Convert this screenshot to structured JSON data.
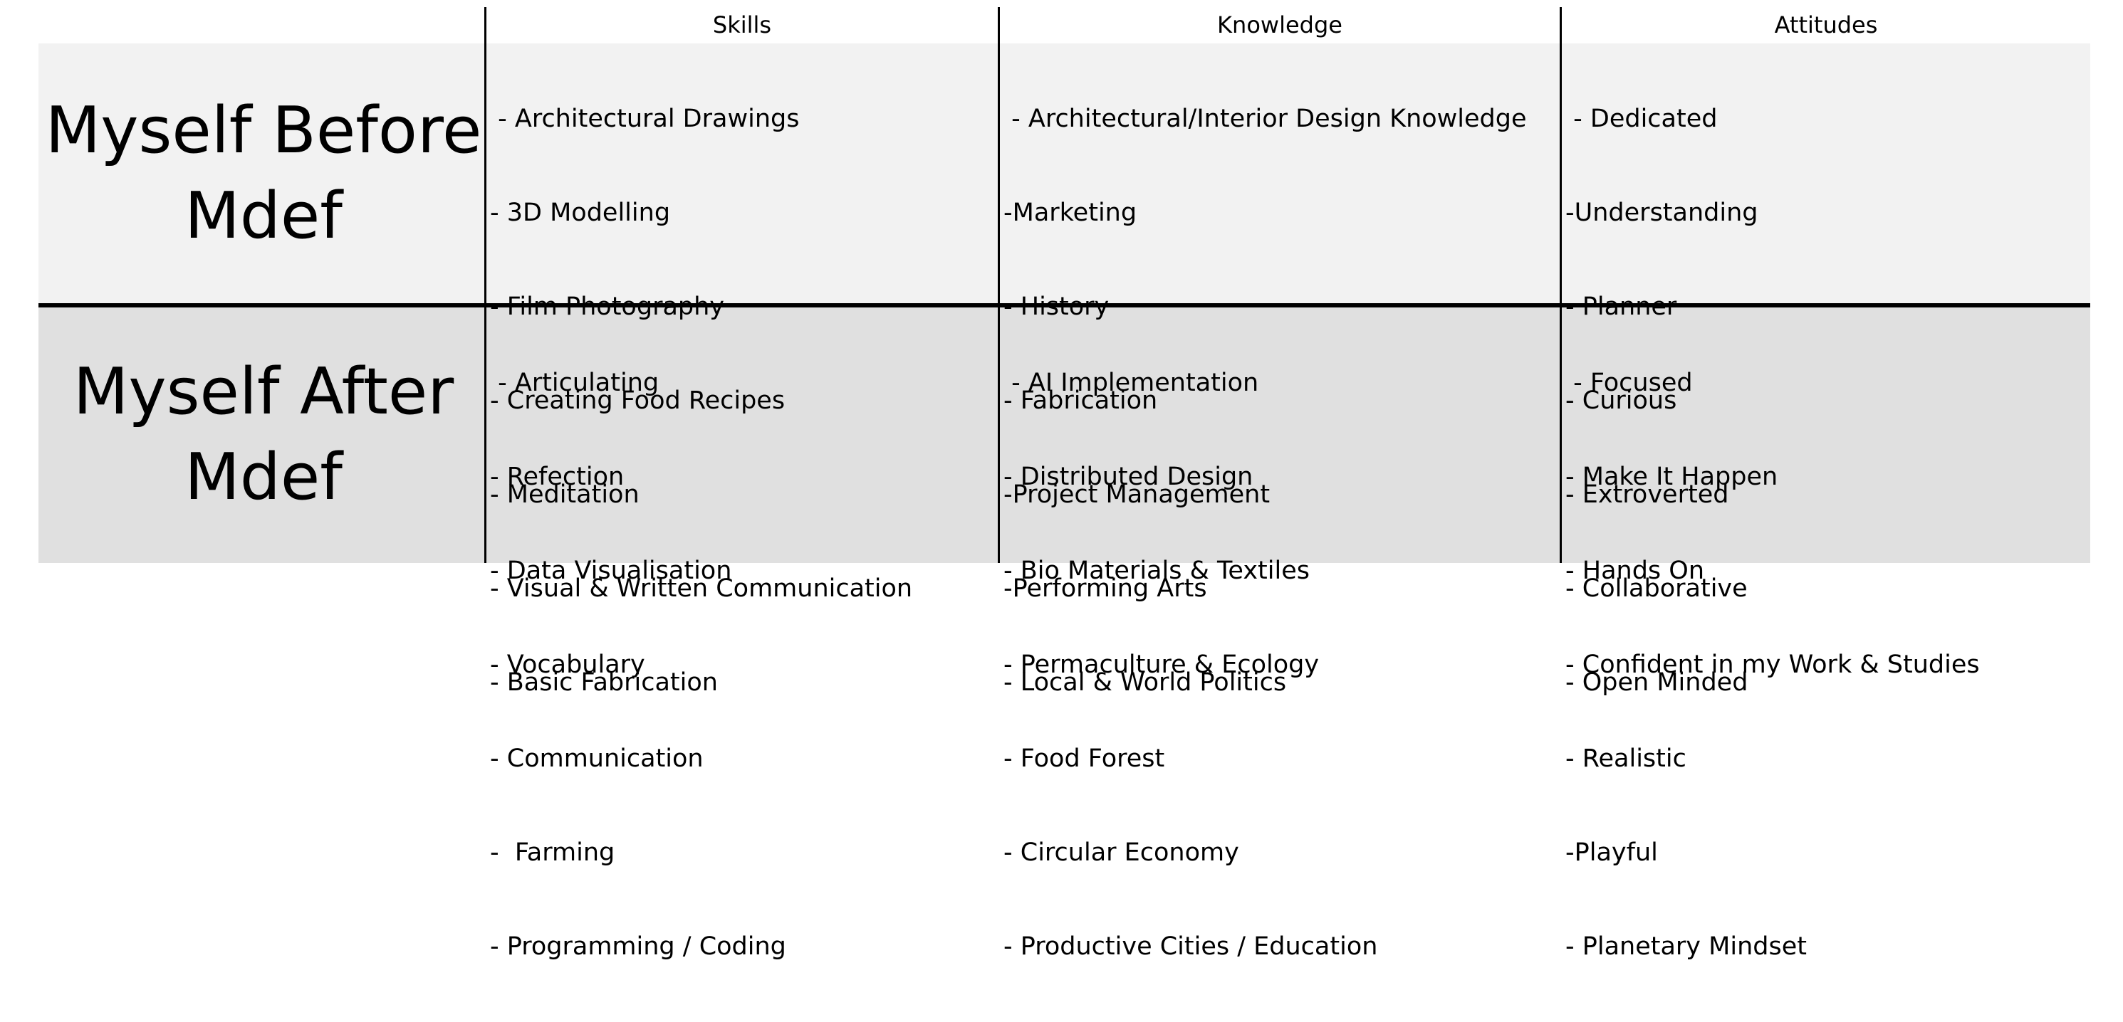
{
  "columns": {
    "skills": "Skills",
    "knowledge": "Knowledge",
    "attitudes": "Attitudes"
  },
  "rows": {
    "before": {
      "title_line1": "Myself Before",
      "title_line2": "Mdef",
      "skills": [
        " - Architectural Drawings",
        "- 3D Modelling",
        "- Film Photography",
        "- Creating Food Recipes",
        "- Meditation",
        "- Visual & Written Communication",
        "- Basic Fabrication"
      ],
      "knowledge": [
        " - Architectural/Interior Design Knowledge",
        "-Marketing",
        "- History",
        "- Fabrication",
        "-Project Management",
        "-Performing Arts",
        "- Local & World Politics"
      ],
      "attitudes": [
        " - Dedicated",
        "-Understanding",
        "- Planner",
        "- Curious",
        "- Extroverted",
        "- Collaborative",
        "- Open Minded"
      ]
    },
    "after": {
      "title_line1": "Myself After",
      "title_line2": "Mdef",
      "skills": [
        " - Articulating",
        "- Refection",
        "- Data Visualisation",
        "- Vocabulary",
        "- Communication",
        "-  Farming",
        "- Programming / Coding"
      ],
      "knowledge": [
        " - AI Implementation",
        "- Distributed Design",
        "- Bio Materials & Textiles",
        "- Permaculture & Ecology",
        "- Food Forest",
        "- Circular Economy",
        "- Productive Cities / Education"
      ],
      "attitudes": [
        " - Focused",
        "- Make It Happen",
        "- Hands On",
        "- Confident in my Work & Studies",
        "- Realistic",
        "-Playful",
        "- Planetary Mindset"
      ]
    }
  },
  "colors": {
    "before_band": "#f2f2f2",
    "after_band": "#e0e0e0",
    "rule": "#000000"
  }
}
